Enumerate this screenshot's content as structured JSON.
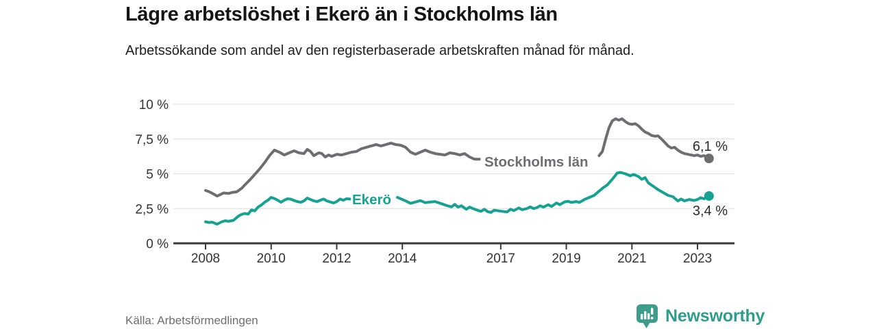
{
  "header": {
    "title": "Lägre arbetslöshet i Ekerö än i Stockholms län",
    "subtitle": "Arbetssökande som andel av den registerbaserade arbetskraften månad för månad."
  },
  "footer": {
    "source": "Källa: Arbetsförmedlingen",
    "brand": "Newsworthy",
    "brand_icon": "newsworthy-bar-chart-bubble-icon"
  },
  "colors": {
    "stockholm_line": "#6d6d72",
    "ekero_line": "#15a292",
    "axis": "#3a3a3a",
    "grid": "#e0e0e0",
    "axis_text": "#333333",
    "value_text": "#2b2b2b",
    "brand_teal": "#2f9c8d",
    "source_text": "#6e6e6e"
  },
  "chart_data": {
    "type": "line",
    "title": "Lägre arbetslöshet i Ekerö än i Stockholms län",
    "subtitle": "Arbetssökande som andel av den registerbaserade arbetskraften månad för månad.",
    "source": "Källa: Arbetsförmedlingen",
    "grid": true,
    "legend_position": "inline-labels-on-lines",
    "x_axis": {
      "unit": "year",
      "range": [
        2007.0,
        2024.1
      ],
      "tick_years": [
        2008,
        2010,
        2012,
        2014,
        2017,
        2019,
        2021,
        2023
      ],
      "tick_labels": [
        "2008",
        "2010",
        "2012",
        "2014",
        "2017",
        "2019",
        "2021",
        "2023"
      ]
    },
    "y_axis": {
      "unit": "%",
      "range": [
        0,
        10
      ],
      "tick_values": [
        0,
        2.5,
        5,
        7.5,
        10
      ],
      "tick_labels": [
        "0 %",
        "2,5 %",
        "5 %",
        "7,5 %",
        "10 %"
      ]
    },
    "series": [
      {
        "key": "stockholm",
        "name": "Stockholms län",
        "color": "#6d6d72",
        "end_value": 6.1,
        "end_label": "6,1 %",
        "note": "line interrupted by inline name label between 2016.4 and 2020",
        "points_by_segment": [
          [
            [
              2008.0,
              3.8
            ],
            [
              2008.1,
              3.72
            ],
            [
              2008.2,
              3.6
            ],
            [
              2008.35,
              3.4
            ],
            [
              2008.45,
              3.5
            ],
            [
              2008.55,
              3.62
            ],
            [
              2008.7,
              3.58
            ],
            [
              2008.8,
              3.65
            ],
            [
              2008.95,
              3.7
            ],
            [
              2009.1,
              3.95
            ],
            [
              2009.2,
              4.2
            ],
            [
              2009.35,
              4.55
            ],
            [
              2009.5,
              4.95
            ],
            [
              2009.65,
              5.35
            ],
            [
              2009.8,
              5.8
            ],
            [
              2009.95,
              6.3
            ],
            [
              2010.1,
              6.7
            ],
            [
              2010.25,
              6.55
            ],
            [
              2010.4,
              6.35
            ],
            [
              2010.55,
              6.5
            ],
            [
              2010.7,
              6.65
            ],
            [
              2010.85,
              6.5
            ],
            [
              2011.0,
              6.45
            ],
            [
              2011.1,
              6.75
            ],
            [
              2011.2,
              6.6
            ],
            [
              2011.3,
              6.3
            ],
            [
              2011.45,
              6.5
            ],
            [
              2011.55,
              6.45
            ],
            [
              2011.65,
              6.2
            ],
            [
              2011.75,
              6.35
            ],
            [
              2011.85,
              6.25
            ],
            [
              2012.0,
              6.4
            ],
            [
              2012.15,
              6.35
            ],
            [
              2012.3,
              6.45
            ],
            [
              2012.45,
              6.55
            ],
            [
              2012.6,
              6.6
            ],
            [
              2012.75,
              6.8
            ],
            [
              2012.9,
              6.9
            ],
            [
              2013.05,
              7.0
            ],
            [
              2013.2,
              7.1
            ],
            [
              2013.35,
              7.0
            ],
            [
              2013.5,
              7.1
            ],
            [
              2013.65,
              7.2
            ],
            [
              2013.8,
              7.1
            ],
            [
              2013.95,
              7.05
            ],
            [
              2014.1,
              6.9
            ],
            [
              2014.25,
              6.55
            ],
            [
              2014.4,
              6.4
            ],
            [
              2014.55,
              6.55
            ],
            [
              2014.7,
              6.7
            ],
            [
              2014.85,
              6.55
            ],
            [
              2015.0,
              6.45
            ],
            [
              2015.15,
              6.4
            ],
            [
              2015.3,
              6.35
            ],
            [
              2015.45,
              6.5
            ],
            [
              2015.6,
              6.45
            ],
            [
              2015.75,
              6.35
            ],
            [
              2015.9,
              6.45
            ],
            [
              2016.05,
              6.2
            ],
            [
              2016.2,
              6.05
            ],
            [
              2016.35,
              6.05
            ]
          ],
          [
            [
              2020.0,
              6.3
            ],
            [
              2020.1,
              6.6
            ],
            [
              2020.2,
              7.5
            ],
            [
              2020.3,
              8.3
            ],
            [
              2020.4,
              8.8
            ],
            [
              2020.5,
              8.95
            ],
            [
              2020.6,
              8.85
            ],
            [
              2020.7,
              8.95
            ],
            [
              2020.8,
              8.75
            ],
            [
              2020.9,
              8.6
            ],
            [
              2021.0,
              8.55
            ],
            [
              2021.1,
              8.6
            ],
            [
              2021.2,
              8.45
            ],
            [
              2021.3,
              8.2
            ],
            [
              2021.4,
              8.0
            ],
            [
              2021.5,
              7.9
            ],
            [
              2021.6,
              7.75
            ],
            [
              2021.7,
              7.7
            ],
            [
              2021.8,
              7.72
            ],
            [
              2021.9,
              7.5
            ],
            [
              2022.0,
              7.25
            ],
            [
              2022.1,
              7.0
            ],
            [
              2022.2,
              6.85
            ],
            [
              2022.3,
              6.9
            ],
            [
              2022.4,
              6.7
            ],
            [
              2022.5,
              6.55
            ],
            [
              2022.6,
              6.45
            ],
            [
              2022.7,
              6.4
            ],
            [
              2022.8,
              6.35
            ],
            [
              2022.9,
              6.3
            ],
            [
              2023.0,
              6.35
            ],
            [
              2023.1,
              6.25
            ],
            [
              2023.2,
              6.3
            ],
            [
              2023.35,
              6.1
            ]
          ]
        ]
      },
      {
        "key": "ekero",
        "name": "Ekerö",
        "color": "#15a292",
        "end_value": 3.4,
        "end_label": "3,4 %",
        "note": "line interrupted by inline name label between 2012.4 and 2013.85",
        "points_by_segment": [
          [
            [
              2008.0,
              1.55
            ],
            [
              2008.1,
              1.5
            ],
            [
              2008.2,
              1.52
            ],
            [
              2008.35,
              1.38
            ],
            [
              2008.5,
              1.55
            ],
            [
              2008.6,
              1.62
            ],
            [
              2008.7,
              1.58
            ],
            [
              2008.85,
              1.65
            ],
            [
              2009.0,
              1.95
            ],
            [
              2009.1,
              2.08
            ],
            [
              2009.2,
              2.15
            ],
            [
              2009.3,
              2.1
            ],
            [
              2009.4,
              2.4
            ],
            [
              2009.5,
              2.33
            ],
            [
              2009.6,
              2.6
            ],
            [
              2009.7,
              2.75
            ],
            [
              2009.8,
              2.95
            ],
            [
              2009.9,
              3.1
            ],
            [
              2010.0,
              3.3
            ],
            [
              2010.1,
              3.22
            ],
            [
              2010.2,
              3.1
            ],
            [
              2010.3,
              2.95
            ],
            [
              2010.4,
              3.1
            ],
            [
              2010.5,
              3.2
            ],
            [
              2010.6,
              3.17
            ],
            [
              2010.7,
              3.08
            ],
            [
              2010.8,
              3.0
            ],
            [
              2010.9,
              2.95
            ],
            [
              2011.0,
              3.05
            ],
            [
              2011.1,
              3.25
            ],
            [
              2011.2,
              3.15
            ],
            [
              2011.3,
              3.05
            ],
            [
              2011.4,
              3.0
            ],
            [
              2011.5,
              3.1
            ],
            [
              2011.6,
              3.18
            ],
            [
              2011.7,
              3.05
            ],
            [
              2011.8,
              2.97
            ],
            [
              2011.9,
              2.9
            ],
            [
              2012.0,
              3.0
            ],
            [
              2012.1,
              3.18
            ],
            [
              2012.2,
              3.1
            ],
            [
              2012.3,
              3.2
            ],
            [
              2012.4,
              3.18
            ]
          ],
          [
            [
              2013.85,
              3.3
            ],
            [
              2013.95,
              3.2
            ],
            [
              2014.1,
              3.05
            ],
            [
              2014.25,
              2.87
            ],
            [
              2014.4,
              2.97
            ],
            [
              2014.55,
              3.07
            ],
            [
              2014.7,
              2.92
            ],
            [
              2014.85,
              2.97
            ],
            [
              2015.0,
              3.0
            ],
            [
              2015.1,
              2.92
            ],
            [
              2015.25,
              2.8
            ],
            [
              2015.4,
              2.68
            ],
            [
              2015.5,
              2.62
            ],
            [
              2015.6,
              2.8
            ],
            [
              2015.7,
              2.6
            ],
            [
              2015.8,
              2.7
            ],
            [
              2015.95,
              2.45
            ],
            [
              2016.05,
              2.6
            ],
            [
              2016.15,
              2.5
            ],
            [
              2016.3,
              2.37
            ],
            [
              2016.4,
              2.3
            ],
            [
              2016.5,
              2.45
            ],
            [
              2016.6,
              2.28
            ],
            [
              2016.7,
              2.22
            ],
            [
              2016.8,
              2.38
            ],
            [
              2016.95,
              2.33
            ],
            [
              2017.1,
              2.28
            ],
            [
              2017.2,
              2.26
            ],
            [
              2017.3,
              2.45
            ],
            [
              2017.4,
              2.35
            ],
            [
              2017.55,
              2.54
            ],
            [
              2017.65,
              2.42
            ],
            [
              2017.8,
              2.5
            ],
            [
              2017.9,
              2.62
            ],
            [
              2018.0,
              2.5
            ],
            [
              2018.1,
              2.56
            ],
            [
              2018.2,
              2.7
            ],
            [
              2018.3,
              2.6
            ],
            [
              2018.45,
              2.78
            ],
            [
              2018.55,
              2.65
            ],
            [
              2018.7,
              2.9
            ],
            [
              2018.8,
              2.78
            ],
            [
              2018.95,
              2.98
            ],
            [
              2019.05,
              3.02
            ],
            [
              2019.15,
              2.94
            ],
            [
              2019.3,
              3.0
            ],
            [
              2019.4,
              2.94
            ],
            [
              2019.55,
              3.15
            ],
            [
              2019.7,
              3.3
            ],
            [
              2019.85,
              3.45
            ],
            [
              2019.95,
              3.65
            ],
            [
              2020.1,
              3.95
            ],
            [
              2020.25,
              4.2
            ],
            [
              2020.4,
              4.6
            ],
            [
              2020.55,
              5.05
            ],
            [
              2020.65,
              5.1
            ],
            [
              2020.8,
              5.0
            ],
            [
              2020.95,
              4.85
            ],
            [
              2021.05,
              4.95
            ],
            [
              2021.2,
              4.8
            ],
            [
              2021.3,
              4.6
            ],
            [
              2021.4,
              4.72
            ],
            [
              2021.5,
              4.35
            ],
            [
              2021.65,
              4.1
            ],
            [
              2021.8,
              3.85
            ],
            [
              2021.95,
              3.65
            ],
            [
              2022.1,
              3.45
            ],
            [
              2022.25,
              3.35
            ],
            [
              2022.4,
              3.05
            ],
            [
              2022.5,
              3.18
            ],
            [
              2022.6,
              3.05
            ],
            [
              2022.75,
              3.15
            ],
            [
              2022.9,
              3.08
            ],
            [
              2023.0,
              3.15
            ],
            [
              2023.1,
              3.28
            ],
            [
              2023.2,
              3.2
            ],
            [
              2023.35,
              3.4
            ]
          ]
        ]
      }
    ]
  }
}
